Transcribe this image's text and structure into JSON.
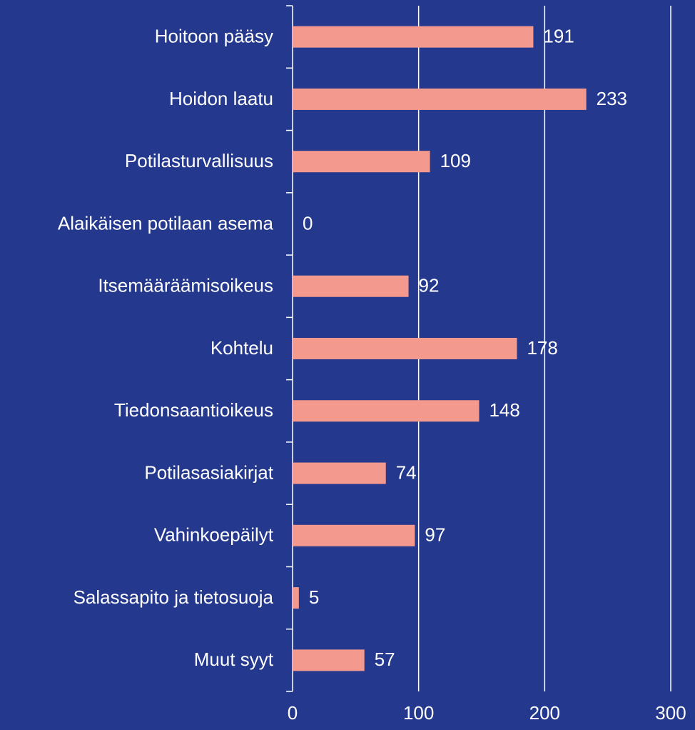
{
  "chart_data": {
    "type": "bar",
    "orientation": "horizontal",
    "categories": [
      "Hoitoon pääsy",
      "Hoidon laatu",
      "Potilasturvallisuus",
      "Alaikäisen potilaan asema",
      "Itsemääräämisoikeus",
      "Kohtelu",
      "Tiedonsaantioikeus",
      "Potilasasiakirjat",
      "Vahinkoepäilyt",
      "Salassapito ja tietosuoja",
      "Muut syyt"
    ],
    "values": [
      191,
      233,
      109,
      0,
      92,
      178,
      148,
      74,
      97,
      5,
      57
    ],
    "color": "#f4998e",
    "xlim": [
      0,
      300
    ],
    "xticks": [
      0,
      100,
      200,
      300
    ],
    "grid": true
  }
}
